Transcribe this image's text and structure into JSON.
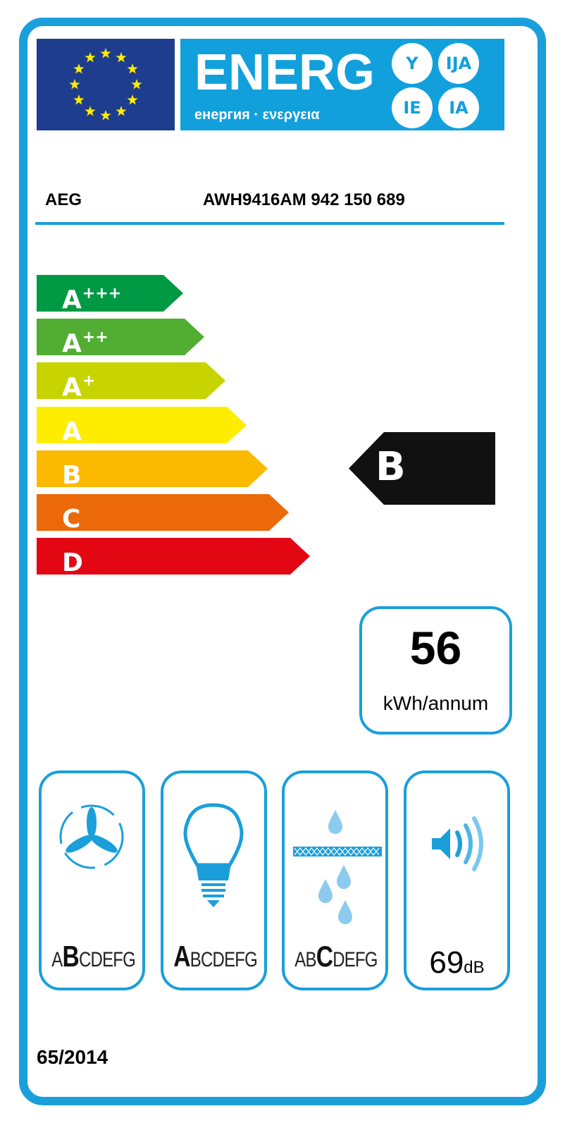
{
  "header": {
    "energy_word": "ENERG",
    "energy_subtitle": "енергия · ενεργεια",
    "language_suffixes": [
      "Y",
      "IJA",
      "IE",
      "IA"
    ],
    "supplier": "AEG",
    "model": "AWH9416AM  942 150 689"
  },
  "scale": [
    {
      "base": "A",
      "plus": "+++",
      "color": "#009a44"
    },
    {
      "base": "A",
      "plus": "++",
      "color": "#52ae32"
    },
    {
      "base": "A",
      "plus": "+",
      "color": "#c8d400"
    },
    {
      "base": "A",
      "plus": "",
      "color": "#ffed00"
    },
    {
      "base": "B",
      "plus": "",
      "color": "#fbba00"
    },
    {
      "base": "C",
      "plus": "",
      "color": "#eb6909"
    },
    {
      "base": "D",
      "plus": "",
      "color": "#e30613"
    }
  ],
  "rating": {
    "class": "B",
    "color": "#111111"
  },
  "consumption": {
    "value": "56",
    "unit": "kWh/annum"
  },
  "pictograms": [
    {
      "icon": "fan-icon",
      "classes": [
        "A",
        "B",
        "C",
        "D",
        "E",
        "F",
        "G"
      ],
      "active": "B"
    },
    {
      "icon": "light-bulb-icon",
      "classes": [
        "A",
        "B",
        "C",
        "D",
        "E",
        "F",
        "G"
      ],
      "active": "A"
    },
    {
      "icon": "grease-filter-icon",
      "classes": [
        "A",
        "B",
        "C",
        "D",
        "E",
        "F",
        "G"
      ],
      "active": "C"
    },
    {
      "icon": "speaker-icon",
      "noise_value": "69",
      "noise_unit": "dB"
    }
  ],
  "regulation": "65/2014",
  "colors": {
    "frame": "#1a9fdb",
    "eu_blue": "#1e3d8f",
    "star": "#ffed00"
  }
}
